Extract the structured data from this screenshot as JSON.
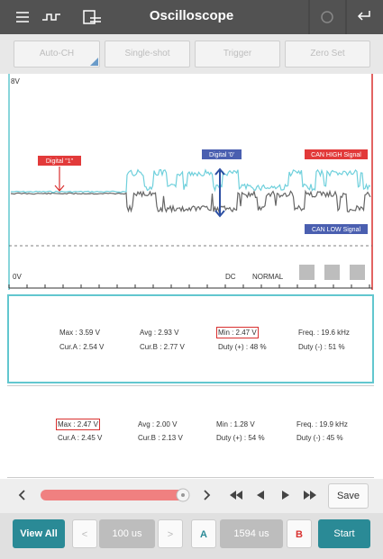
{
  "header": {
    "title": "Oscilloscope"
  },
  "toolbar": {
    "buttons": [
      "Auto-CH",
      "Single-shot",
      "Trigger",
      "Zero Set"
    ]
  },
  "scope": {
    "y_max_label": "8V",
    "y_min_label": "0V",
    "coupling": "DC",
    "mode": "NORMAL",
    "annotations": [
      "Digital \"1\"",
      "Digital '0'",
      "CAN HIGH Signal",
      "CAN LOW Signal"
    ]
  },
  "panels": [
    {
      "rows": [
        [
          "Max : 3.59 V",
          "Avg : 2.93 V",
          "Min : 2.47 V",
          "Freq. : 19.6 kHz"
        ],
        [
          "Cur.A : 2.54 V",
          "Cur.B : 2.77 V",
          "Duty (+) : 48 %",
          "Duty (-) : 51 %"
        ]
      ]
    },
    {
      "rows": [
        [
          "Max : 2.47 V",
          "Avg : 2.00 V",
          "Min : 1.28 V",
          "Freq. : 19.9 kHz"
        ],
        [
          "Cur.A : 2.45 V",
          "Cur.B : 2.13 V",
          "Duty (+) : 54 %",
          "Duty (-) : 45 %"
        ]
      ]
    }
  ],
  "controls": {
    "save": "Save",
    "view_all": "View All",
    "time_div": "100 us",
    "cursor_a": "A",
    "cursor_time": "1594 us",
    "cursor_b": "B",
    "start": "Start"
  }
}
